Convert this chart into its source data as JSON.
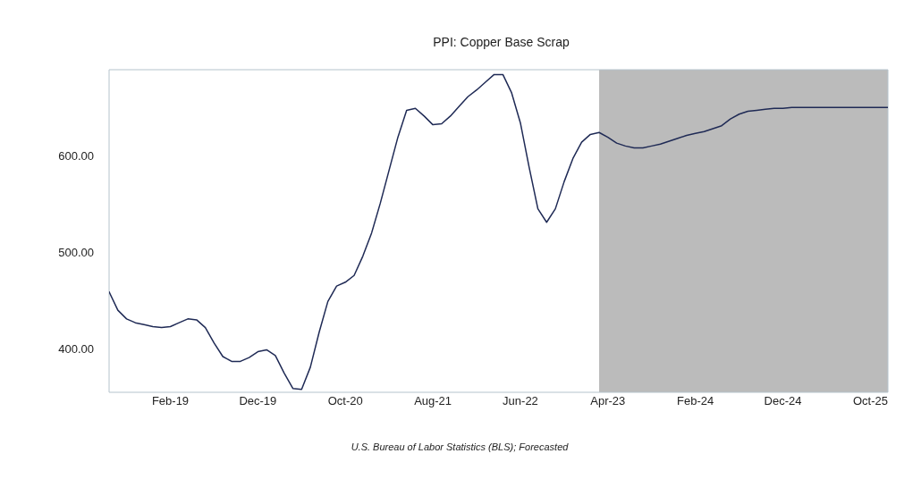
{
  "chart_data": {
    "type": "line",
    "title": "PPI: Copper Base Scrap",
    "annotations": [
      "U.S. Bureau of Labor Statistics (BLS); Forecasted"
    ],
    "x": [
      "2018-07",
      "2018-08",
      "2018-09",
      "2018-10",
      "2018-11",
      "2018-12",
      "2019-01",
      "2019-02",
      "2019-03",
      "2019-04",
      "2019-05",
      "2019-06",
      "2019-07",
      "2019-08",
      "2019-09",
      "2019-10",
      "2019-11",
      "2019-12",
      "2020-01",
      "2020-02",
      "2020-03",
      "2020-04",
      "2020-05",
      "2020-06",
      "2020-07",
      "2020-08",
      "2020-09",
      "2020-10",
      "2020-11",
      "2020-12",
      "2021-01",
      "2021-02",
      "2021-03",
      "2021-04",
      "2021-05",
      "2021-06",
      "2021-07",
      "2021-08",
      "2021-09",
      "2021-10",
      "2021-11",
      "2021-12",
      "2022-01",
      "2022-02",
      "2022-03",
      "2022-04",
      "2022-05",
      "2022-06",
      "2022-07",
      "2022-08",
      "2022-09",
      "2022-10",
      "2022-11",
      "2022-12",
      "2023-01",
      "2023-02",
      "2023-03",
      "2023-04",
      "2023-05",
      "2023-06",
      "2023-07",
      "2023-08",
      "2023-09",
      "2023-10",
      "2023-11",
      "2023-12",
      "2024-01",
      "2024-02",
      "2024-03",
      "2024-04",
      "2024-05",
      "2024-06",
      "2024-07",
      "2024-08",
      "2024-09",
      "2024-10",
      "2024-11",
      "2024-12",
      "2025-01",
      "2025-02",
      "2025-03",
      "2025-04",
      "2025-05",
      "2025-06",
      "2025-07",
      "2025-08",
      "2025-09",
      "2025-10",
      "2025-11",
      "2025-12"
    ],
    "series": [
      {
        "color": "#1f2a55",
        "values": [
          460,
          441,
          432,
          428,
          426,
          424,
          423,
          424,
          428,
          432,
          431,
          423,
          407,
          393,
          388,
          388,
          392,
          398,
          400,
          394,
          376,
          360,
          359,
          382,
          418,
          450,
          466,
          470,
          477,
          497,
          521,
          552,
          586,
          620,
          648,
          650,
          642,
          633,
          634,
          642,
          652,
          662,
          669,
          677,
          685,
          685,
          666,
          635,
          589,
          546,
          532,
          546,
          574,
          598,
          615,
          623,
          625,
          620,
          614,
          611,
          609,
          609,
          611,
          613,
          616,
          619,
          622,
          624,
          626,
          629,
          632,
          639,
          644,
          647,
          648,
          649,
          650,
          650,
          651,
          651,
          651,
          651,
          651,
          651,
          651,
          651,
          651,
          651,
          651,
          651
        ]
      }
    ],
    "xlim": [
      "2018-07",
      "2025-12"
    ],
    "xticks": [
      {
        "value": "2019-02",
        "label": "Feb-19"
      },
      {
        "value": "2019-12",
        "label": "Dec-19"
      },
      {
        "value": "2020-10",
        "label": "Oct-20"
      },
      {
        "value": "2021-08",
        "label": "Aug-21"
      },
      {
        "value": "2022-06",
        "label": "Jun-22"
      },
      {
        "value": "2023-04",
        "label": "Apr-23"
      },
      {
        "value": "2024-02",
        "label": "Feb-24"
      },
      {
        "value": "2024-12",
        "label": "Dec-24"
      },
      {
        "value": "2025-10",
        "label": "Oct-25"
      }
    ],
    "ylim": [
      356,
      690
    ],
    "yticks": [
      {
        "value": 400,
        "label": "400.00"
      },
      {
        "value": 500,
        "label": "500.00"
      },
      {
        "value": 600,
        "label": "600.00"
      }
    ],
    "bands": [
      {
        "axis": "x",
        "from": "2023-03",
        "to": "2025-12",
        "color": "#bbbbbb"
      }
    ],
    "grid": false,
    "legend": false,
    "marker": "none",
    "line_style": "solid"
  }
}
